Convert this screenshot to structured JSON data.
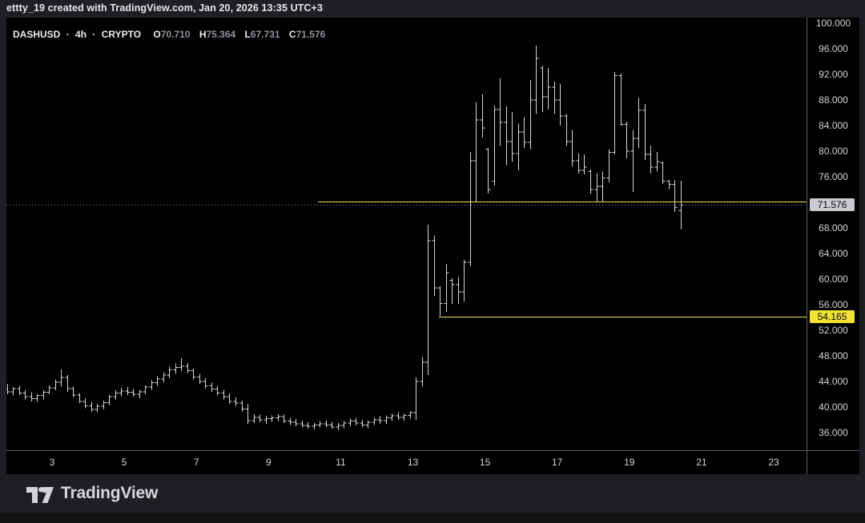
{
  "header": {
    "credit": "ettty_19 created with TradingView.com, Jan 20, 2026 13:35 UTC+3"
  },
  "legend": {
    "symbol": "DASHUSD",
    "separator": "·",
    "interval": "4h",
    "market": "CRYPTO",
    "ohlc": [
      {
        "label": "O",
        "value": "70.710"
      },
      {
        "label": "H",
        "value": "75.364"
      },
      {
        "label": "L",
        "value": "67.731"
      },
      {
        "label": "C",
        "value": "71.576"
      }
    ]
  },
  "footer": {
    "brand": "TradingView"
  },
  "chart_data": {
    "type": "bar",
    "title": "DASHUSD 4h OHLC bar chart (CRYPTO)",
    "x_axis": {
      "unit": "day of January 2026",
      "tick_days": [
        3,
        5,
        7,
        9,
        11,
        13,
        15,
        17,
        19,
        21,
        23
      ],
      "first_bar_day": 1.75,
      "bar_step_days": 0.166667
    },
    "y_axis": {
      "ticks": [
        100,
        96,
        92,
        88,
        84,
        80,
        76,
        68,
        64,
        60,
        56,
        52,
        48,
        44,
        40,
        36
      ],
      "ylim": [
        33.0,
        100.9
      ],
      "tick_format_decimals": 3
    },
    "last_price": 71.576,
    "axis_price_labels": [
      {
        "text": "71.576",
        "price": 71.576,
        "bg": "#c9cbcf"
      },
      {
        "text": "54.165",
        "price": 54.165,
        "bg": "#f2e232"
      }
    ],
    "drawn_lines": [
      {
        "type": "horizontal_ray",
        "price": 72.1,
        "start_day": 10.37,
        "color": "#f0df3e"
      },
      {
        "type": "horizontal_ray",
        "price": 54.165,
        "start_day": 13.72,
        "color": "#f0df3e"
      }
    ],
    "colors": {
      "bar": "#d7d7d7",
      "background": "#000000",
      "last_price_line": "#9096a0",
      "last_price_label_bg": "#c9cbcf",
      "ray_label_bg": "#f2e232"
    },
    "bars": [
      [
        42.8,
        43.6,
        42.0,
        42.4
      ],
      [
        42.4,
        43.1,
        41.8,
        42.9
      ],
      [
        42.9,
        43.3,
        41.9,
        42.2
      ],
      [
        42.2,
        42.6,
        41.2,
        41.6
      ],
      [
        41.6,
        42.3,
        40.9,
        41.3
      ],
      [
        41.3,
        42.0,
        40.8,
        41.8
      ],
      [
        41.8,
        42.6,
        41.2,
        42.3
      ],
      [
        42.3,
        43.4,
        42.0,
        43.0
      ],
      [
        43.0,
        44.3,
        42.6,
        43.9
      ],
      [
        43.9,
        45.9,
        43.2,
        44.6
      ],
      [
        44.6,
        45.0,
        42.4,
        42.9
      ],
      [
        42.9,
        43.2,
        41.5,
        41.9
      ],
      [
        41.9,
        42.2,
        40.6,
        40.9
      ],
      [
        40.9,
        41.4,
        39.8,
        40.2
      ],
      [
        40.2,
        40.8,
        39.3,
        39.6
      ],
      [
        39.6,
        40.5,
        39.2,
        40.1
      ],
      [
        40.1,
        41.0,
        39.6,
        40.7
      ],
      [
        40.7,
        41.9,
        40.3,
        41.6
      ],
      [
        41.6,
        42.6,
        41.2,
        42.2
      ],
      [
        42.2,
        43.0,
        41.7,
        42.5
      ],
      [
        42.5,
        43.1,
        41.9,
        42.3
      ],
      [
        42.3,
        42.8,
        41.6,
        42.0
      ],
      [
        42.0,
        42.7,
        41.4,
        42.4
      ],
      [
        42.4,
        43.4,
        42.0,
        43.1
      ],
      [
        43.1,
        44.2,
        42.7,
        43.8
      ],
      [
        43.8,
        44.8,
        43.3,
        44.4
      ],
      [
        44.4,
        45.4,
        43.9,
        45.0
      ],
      [
        45.0,
        46.3,
        44.5,
        45.8
      ],
      [
        45.8,
        46.8,
        45.2,
        46.2
      ],
      [
        46.2,
        47.6,
        45.6,
        46.4
      ],
      [
        46.4,
        46.9,
        45.3,
        45.7
      ],
      [
        45.7,
        46.0,
        44.3,
        44.7
      ],
      [
        44.7,
        45.2,
        43.6,
        44.0
      ],
      [
        44.0,
        44.5,
        42.9,
        43.3
      ],
      [
        43.3,
        43.8,
        42.4,
        42.8
      ],
      [
        42.8,
        43.3,
        41.8,
        42.2
      ],
      [
        42.2,
        42.7,
        41.2,
        41.6
      ],
      [
        41.6,
        42.1,
        40.5,
        40.9
      ],
      [
        40.9,
        41.5,
        40.2,
        40.6
      ],
      [
        40.6,
        41.0,
        39.3,
        39.7
      ],
      [
        39.7,
        40.5,
        37.4,
        37.9
      ],
      [
        37.9,
        38.9,
        37.5,
        38.4
      ],
      [
        38.4,
        38.8,
        37.6,
        38.0
      ],
      [
        38.0,
        38.6,
        37.4,
        38.2
      ],
      [
        38.2,
        38.7,
        37.7,
        38.3
      ],
      [
        38.3,
        38.9,
        37.8,
        38.5
      ],
      [
        38.5,
        38.8,
        37.5,
        37.8
      ],
      [
        37.8,
        38.3,
        37.2,
        37.6
      ],
      [
        37.6,
        38.1,
        37.0,
        37.4
      ],
      [
        37.4,
        37.9,
        36.8,
        37.1
      ],
      [
        37.1,
        37.6,
        36.6,
        37.0
      ],
      [
        37.0,
        37.5,
        36.5,
        37.2
      ],
      [
        37.2,
        37.8,
        36.8,
        37.4
      ],
      [
        37.4,
        37.9,
        36.9,
        37.2
      ],
      [
        37.2,
        37.7,
        36.6,
        36.9
      ],
      [
        36.9,
        37.5,
        36.4,
        37.1
      ],
      [
        37.1,
        37.8,
        36.7,
        37.5
      ],
      [
        37.5,
        38.2,
        37.0,
        37.8
      ],
      [
        37.8,
        38.3,
        37.1,
        37.5
      ],
      [
        37.5,
        38.0,
        36.8,
        37.2
      ],
      [
        37.2,
        37.9,
        36.7,
        37.6
      ],
      [
        37.6,
        38.4,
        37.2,
        38.0
      ],
      [
        38.0,
        38.6,
        37.4,
        37.9
      ],
      [
        37.9,
        38.7,
        37.3,
        38.3
      ],
      [
        38.3,
        39.0,
        37.8,
        38.6
      ],
      [
        38.6,
        39.2,
        38.0,
        38.4
      ],
      [
        38.4,
        39.0,
        37.9,
        38.7
      ],
      [
        38.7,
        39.4,
        38.2,
        39.1
      ],
      [
        39.1,
        44.6,
        38.0,
        44.0
      ],
      [
        44.0,
        47.8,
        43.2,
        47.0
      ],
      [
        47.0,
        68.5,
        45.0,
        66.0
      ],
      [
        66.0,
        66.8,
        57.4,
        58.6
      ],
      [
        58.6,
        58.9,
        54.165,
        56.2
      ],
      [
        56.2,
        62.4,
        54.9,
        61.0
      ],
      [
        59.8,
        60.1,
        56.1,
        59.1
      ],
      [
        59.1,
        60.3,
        56.1,
        58.0
      ],
      [
        58.0,
        63.0,
        56.5,
        62.6
      ],
      [
        62.6,
        79.9,
        62.0,
        78.5
      ],
      [
        78.5,
        87.6,
        72.1,
        84.9
      ],
      [
        84.9,
        88.9,
        82.1,
        83.6
      ],
      [
        80.3,
        80.5,
        73.4,
        74.0
      ],
      [
        75.3,
        87.1,
        74.6,
        86.5
      ],
      [
        86.5,
        91.4,
        80.8,
        84.5
      ],
      [
        84.5,
        87.0,
        77.8,
        81.5
      ],
      [
        81.5,
        86.1,
        78.3,
        79.6
      ],
      [
        79.6,
        84.3,
        77.0,
        83.0
      ],
      [
        83.0,
        85.3,
        80.5,
        81.4
      ],
      [
        81.4,
        91.1,
        80.3,
        88.0
      ],
      [
        88.0,
        96.5,
        85.8,
        94.5
      ],
      [
        93.0,
        93.3,
        86.1,
        88.5
      ],
      [
        88.5,
        93.0,
        86.5,
        90.0
      ],
      [
        90.0,
        90.9,
        85.8,
        88.0
      ],
      [
        88.0,
        90.5,
        84.0,
        85.5
      ],
      [
        85.5,
        85.8,
        80.8,
        81.5
      ],
      [
        81.5,
        83.3,
        77.6,
        78.5
      ],
      [
        78.5,
        79.6,
        76.5,
        77.0
      ],
      [
        77.0,
        79.5,
        76.4,
        77.5
      ],
      [
        76.8,
        77.1,
        73.3,
        74.0
      ],
      [
        74.0,
        76.5,
        72.0,
        74.5
      ],
      [
        74.5,
        76.8,
        72.1,
        75.8
      ],
      [
        75.8,
        80.3,
        75.1,
        79.8
      ],
      [
        79.8,
        92.4,
        79.5,
        91.8
      ],
      [
        91.8,
        92.1,
        84.0,
        84.2
      ],
      [
        84.2,
        84.6,
        78.9,
        80.0
      ],
      [
        80.0,
        83.3,
        73.6,
        82.0
      ],
      [
        82.0,
        88.4,
        80.5,
        86.4
      ],
      [
        86.4,
        87.4,
        78.6,
        79.5
      ],
      [
        79.5,
        80.9,
        76.5,
        77.5
      ],
      [
        77.5,
        79.9,
        76.8,
        78.4
      ],
      [
        78.2,
        78.4,
        74.9,
        75.3
      ],
      [
        75.3,
        75.5,
        74.0,
        74.8
      ],
      [
        74.8,
        75.5,
        70.5,
        71.2
      ],
      [
        70.71,
        75.364,
        67.731,
        71.576
      ]
    ]
  }
}
